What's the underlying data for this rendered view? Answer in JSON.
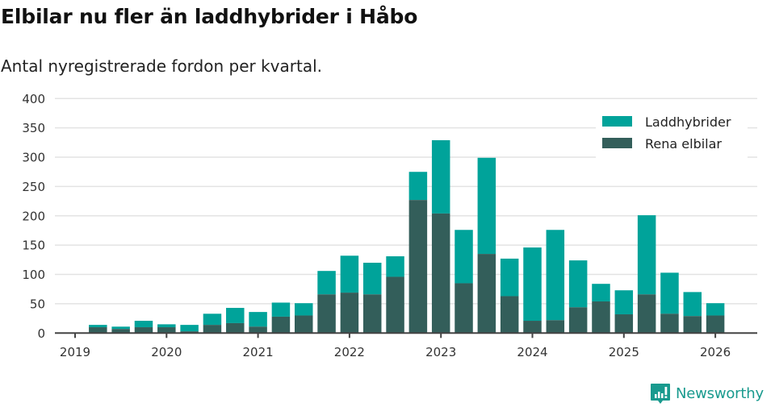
{
  "header": {
    "title": "Elbilar nu fler än laddhybrider i Håbo",
    "subtitle": "Antal nyregistrerade fordon per kvartal."
  },
  "colors": {
    "laddhybrider": "#00a39a",
    "rena_elbilar": "#335e5a",
    "grid": "#e3e3e3",
    "axis": "#444444",
    "brand": "#199a8e"
  },
  "legend": {
    "items": [
      {
        "label": "Laddhybrider",
        "color": "#00a39a"
      },
      {
        "label": "Rena elbilar",
        "color": "#335e5a"
      }
    ]
  },
  "brand": {
    "name": "Newsworthy",
    "icon": "newsworthy-logo-icon"
  },
  "chart_data": {
    "type": "bar",
    "stacked": true,
    "title": "Elbilar nu fler än laddhybrider i Håbo",
    "subtitle": "Antal nyregistrerade fordon per kvartal.",
    "xlabel": "",
    "ylabel": "",
    "ylim": [
      0,
      400
    ],
    "yticks": [
      0,
      50,
      100,
      150,
      200,
      250,
      300,
      350,
      400
    ],
    "xticks": [
      "2019",
      "2020",
      "2021",
      "2022",
      "2023",
      "2024",
      "2025",
      "2026"
    ],
    "grid": true,
    "legend_position": "top-right",
    "categories": [
      "2019 Q1",
      "2019 Q2",
      "2019 Q3",
      "2019 Q4",
      "2020 Q1",
      "2020 Q2",
      "2020 Q3",
      "2020 Q4",
      "2021 Q1",
      "2021 Q2",
      "2021 Q3",
      "2021 Q4",
      "2022 Q1",
      "2022 Q2",
      "2022 Q3",
      "2022 Q4",
      "2023 Q1",
      "2023 Q2",
      "2023 Q3",
      "2023 Q4",
      "2024 Q1",
      "2024 Q2",
      "2024 Q3",
      "2024 Q4",
      "2025 Q1",
      "2025 Q2",
      "2025 Q3",
      "2025 Q4"
    ],
    "series": [
      {
        "name": "Rena elbilar",
        "color": "#335e5a",
        "values": [
          10,
          7,
          10,
          10,
          3,
          14,
          17,
          11,
          28,
          30,
          66,
          69,
          66,
          96,
          227,
          204,
          85,
          135,
          63,
          21,
          22,
          44,
          54,
          32,
          66,
          33,
          29,
          30
        ]
      },
      {
        "name": "Laddhybrider",
        "color": "#00a39a",
        "values": [
          4,
          4,
          11,
          5,
          11,
          19,
          26,
          25,
          24,
          21,
          40,
          63,
          54,
          35,
          48,
          125,
          91,
          164,
          64,
          125,
          154,
          80,
          30,
          41,
          135,
          70,
          41,
          21
        ]
      }
    ]
  }
}
